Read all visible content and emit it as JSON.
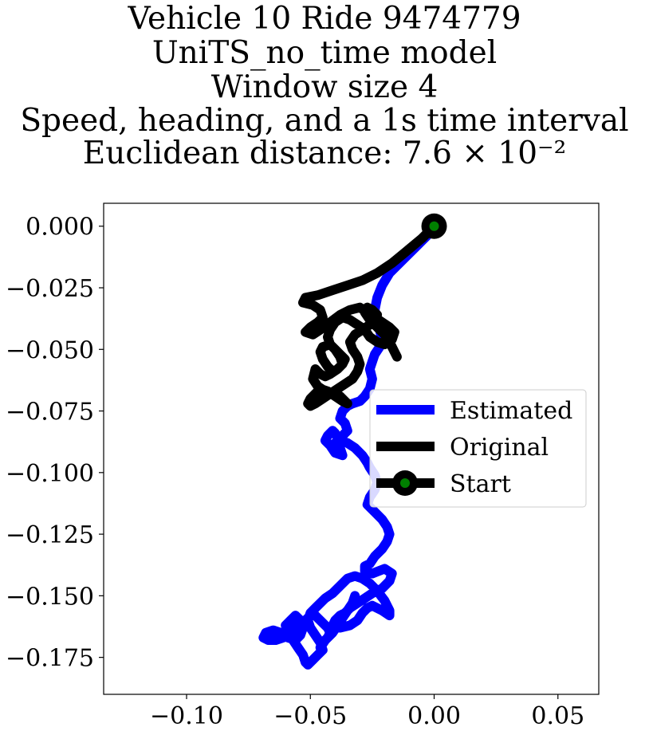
{
  "chart_data": {
    "type": "line",
    "title_lines": [
      "Vehicle 10 Ride 9474779",
      "UniTS_no_time model",
      "Window size 4",
      "Speed, heading, and a 1s time interval",
      "Euclidean distance: 7.6 × 10⁻²"
    ],
    "xlabel": "",
    "ylabel": "",
    "xlim": [
      -0.1335,
      0.0665
    ],
    "ylim": [
      -0.19,
      0.0093
    ],
    "x_ticks": [
      -0.1,
      -0.05,
      0.0,
      0.05
    ],
    "x_tick_labels": [
      "−0.10",
      "−0.05",
      "0.00",
      "0.05"
    ],
    "y_ticks": [
      0.0,
      -0.025,
      -0.05,
      -0.075,
      -0.1,
      -0.125,
      -0.15,
      -0.175
    ],
    "y_tick_labels": [
      "0.000",
      "−0.025",
      "−0.050",
      "−0.075",
      "−0.100",
      "−0.125",
      "−0.150",
      "−0.175"
    ],
    "grid": false,
    "legend_position": "center-right",
    "series": [
      {
        "name": "Estimated",
        "color": "#0000ff",
        "x": [
          0.0,
          -0.003,
          -0.008,
          -0.013,
          -0.018,
          -0.021,
          -0.023,
          -0.024,
          -0.023,
          -0.022,
          -0.021,
          -0.022,
          -0.024,
          -0.025,
          -0.026,
          -0.025,
          -0.026,
          -0.028,
          -0.03,
          -0.033,
          -0.035,
          -0.037,
          -0.038,
          -0.036,
          -0.035,
          -0.037,
          -0.039,
          -0.04,
          -0.041,
          -0.043,
          -0.044,
          -0.042,
          -0.04,
          -0.037,
          -0.038,
          -0.04,
          -0.038,
          -0.035,
          -0.032,
          -0.029,
          -0.027,
          -0.026,
          -0.024,
          -0.023,
          -0.024,
          -0.026,
          -0.027,
          -0.024,
          -0.021,
          -0.019,
          -0.018,
          -0.019,
          -0.021,
          -0.024,
          -0.026,
          -0.028,
          -0.028,
          -0.025,
          -0.02,
          -0.017,
          -0.018,
          -0.021,
          -0.025,
          -0.028,
          -0.031,
          -0.034,
          -0.036,
          -0.038,
          -0.04,
          -0.041,
          -0.038,
          -0.034,
          -0.031,
          -0.029,
          -0.027,
          -0.025,
          -0.021,
          -0.018,
          -0.018,
          -0.02,
          -0.023,
          -0.026,
          -0.029,
          -0.032,
          -0.035,
          -0.038,
          -0.041,
          -0.044,
          -0.046,
          -0.048,
          -0.05,
          -0.051,
          -0.05,
          -0.048,
          -0.046,
          -0.045,
          -0.047,
          -0.049,
          -0.051,
          -0.052,
          -0.053,
          -0.055,
          -0.057,
          -0.059,
          -0.06,
          -0.058,
          -0.056,
          -0.054,
          -0.053,
          -0.054,
          -0.056,
          -0.059,
          -0.062,
          -0.065,
          -0.068,
          -0.069,
          -0.067,
          -0.064,
          -0.061,
          -0.059,
          -0.058,
          -0.057,
          -0.055,
          -0.052,
          -0.05,
          -0.049,
          -0.047,
          -0.045,
          -0.043,
          -0.042,
          -0.043,
          -0.045,
          -0.046,
          -0.044,
          -0.041,
          -0.039,
          -0.037,
          -0.035,
          -0.033,
          -0.032
        ],
        "y": [
          0.0,
          -0.004,
          -0.009,
          -0.014,
          -0.019,
          -0.024,
          -0.029,
          -0.034,
          -0.038,
          -0.042,
          -0.046,
          -0.049,
          -0.052,
          -0.055,
          -0.058,
          -0.062,
          -0.066,
          -0.069,
          -0.071,
          -0.072,
          -0.073,
          -0.075,
          -0.078,
          -0.08,
          -0.083,
          -0.085,
          -0.086,
          -0.084,
          -0.083,
          -0.085,
          -0.087,
          -0.089,
          -0.092,
          -0.093,
          -0.09,
          -0.088,
          -0.087,
          -0.088,
          -0.09,
          -0.093,
          -0.096,
          -0.098,
          -0.101,
          -0.104,
          -0.107,
          -0.11,
          -0.113,
          -0.116,
          -0.119,
          -0.122,
          -0.125,
          -0.128,
          -0.131,
          -0.134,
          -0.137,
          -0.138,
          -0.14,
          -0.141,
          -0.139,
          -0.141,
          -0.144,
          -0.147,
          -0.149,
          -0.151,
          -0.153,
          -0.155,
          -0.157,
          -0.158,
          -0.16,
          -0.162,
          -0.163,
          -0.162,
          -0.16,
          -0.157,
          -0.155,
          -0.154,
          -0.156,
          -0.158,
          -0.156,
          -0.152,
          -0.148,
          -0.145,
          -0.143,
          -0.142,
          -0.143,
          -0.146,
          -0.149,
          -0.151,
          -0.153,
          -0.155,
          -0.157,
          -0.16,
          -0.163,
          -0.166,
          -0.169,
          -0.172,
          -0.174,
          -0.176,
          -0.178,
          -0.177,
          -0.174,
          -0.171,
          -0.168,
          -0.165,
          -0.162,
          -0.16,
          -0.158,
          -0.16,
          -0.163,
          -0.166,
          -0.168,
          -0.167,
          -0.165,
          -0.164,
          -0.165,
          -0.167,
          -0.168,
          -0.168,
          -0.167,
          -0.166,
          -0.165,
          -0.164,
          -0.162,
          -0.16,
          -0.158,
          -0.157,
          -0.159,
          -0.161,
          -0.163,
          -0.165,
          -0.167,
          -0.169,
          -0.171,
          -0.168,
          -0.165,
          -0.162,
          -0.159,
          -0.156,
          -0.153,
          -0.15
        ]
      },
      {
        "name": "Original",
        "color": "#000000",
        "x": [
          0.0,
          -0.005,
          -0.011,
          -0.017,
          -0.023,
          -0.029,
          -0.035,
          -0.041,
          -0.047,
          -0.052,
          -0.053,
          -0.049,
          -0.046,
          -0.045,
          -0.047,
          -0.05,
          -0.052,
          -0.049,
          -0.046,
          -0.042,
          -0.038,
          -0.034,
          -0.03,
          -0.027,
          -0.024,
          -0.021,
          -0.018,
          -0.016,
          -0.017,
          -0.02,
          -0.023,
          -0.026,
          -0.028,
          -0.031,
          -0.034,
          -0.037,
          -0.04,
          -0.042,
          -0.043,
          -0.042,
          -0.04,
          -0.038,
          -0.036,
          -0.037,
          -0.039,
          -0.041,
          -0.043,
          -0.045,
          -0.046,
          -0.045,
          -0.042,
          -0.04,
          -0.038,
          -0.037,
          -0.039,
          -0.042,
          -0.044,
          -0.046,
          -0.048,
          -0.049,
          -0.047,
          -0.044,
          -0.041,
          -0.038,
          -0.036,
          -0.035,
          -0.037,
          -0.04,
          -0.043,
          -0.046,
          -0.048,
          -0.05,
          -0.051,
          -0.05,
          -0.048,
          -0.045,
          -0.042,
          -0.039,
          -0.036,
          -0.033,
          -0.031,
          -0.03,
          -0.031,
          -0.033,
          -0.034,
          -0.032,
          -0.029,
          -0.026,
          -0.024,
          -0.023,
          -0.025,
          -0.027,
          -0.028,
          -0.026,
          -0.023,
          -0.02,
          -0.018,
          -0.017,
          -0.016,
          -0.015
        ],
        "y": [
          0.0,
          -0.005,
          -0.01,
          -0.015,
          -0.019,
          -0.022,
          -0.024,
          -0.026,
          -0.028,
          -0.029,
          -0.031,
          -0.032,
          -0.034,
          -0.037,
          -0.039,
          -0.041,
          -0.043,
          -0.044,
          -0.042,
          -0.039,
          -0.036,
          -0.034,
          -0.033,
          -0.035,
          -0.037,
          -0.039,
          -0.041,
          -0.043,
          -0.046,
          -0.048,
          -0.047,
          -0.045,
          -0.042,
          -0.04,
          -0.038,
          -0.037,
          -0.039,
          -0.042,
          -0.045,
          -0.048,
          -0.05,
          -0.052,
          -0.054,
          -0.056,
          -0.058,
          -0.059,
          -0.057,
          -0.054,
          -0.051,
          -0.049,
          -0.048,
          -0.05,
          -0.053,
          -0.056,
          -0.058,
          -0.06,
          -0.061,
          -0.06,
          -0.058,
          -0.062,
          -0.065,
          -0.067,
          -0.068,
          -0.069,
          -0.071,
          -0.072,
          -0.071,
          -0.069,
          -0.067,
          -0.066,
          -0.068,
          -0.07,
          -0.072,
          -0.073,
          -0.072,
          -0.07,
          -0.068,
          -0.066,
          -0.064,
          -0.062,
          -0.059,
          -0.056,
          -0.053,
          -0.05,
          -0.047,
          -0.044,
          -0.042,
          -0.04,
          -0.038,
          -0.036,
          -0.034,
          -0.033,
          -0.035,
          -0.038,
          -0.041,
          -0.044,
          -0.047,
          -0.049,
          -0.051,
          -0.053
        ]
      }
    ],
    "start_point": {
      "name": "Start",
      "x": 0.0,
      "y": 0.0,
      "outer_color": "#000000",
      "inner_color": "#008000"
    }
  }
}
